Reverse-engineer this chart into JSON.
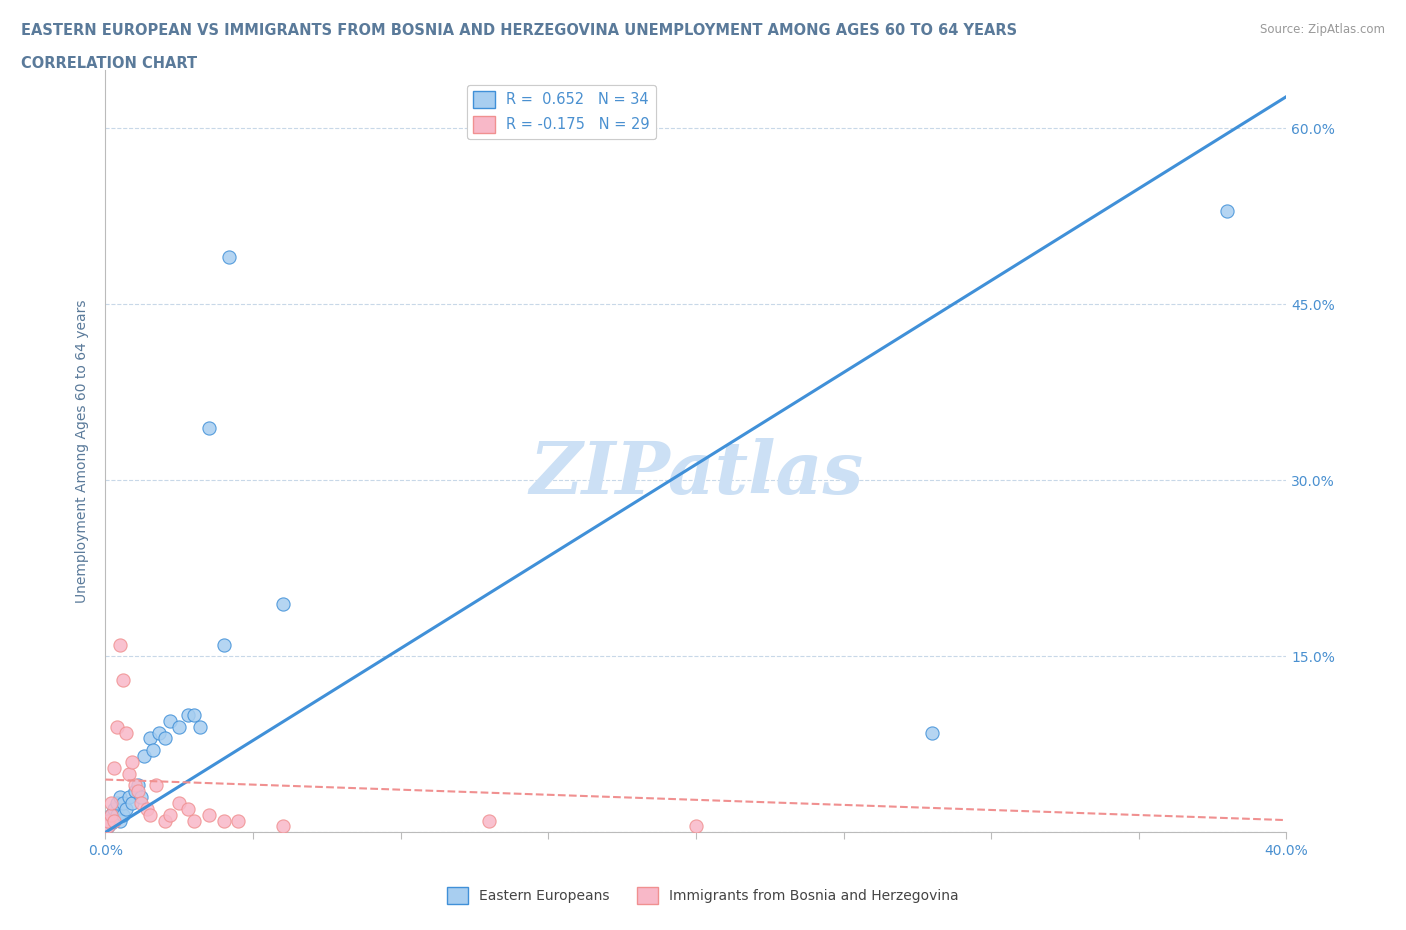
{
  "title_line1": "EASTERN EUROPEAN VS IMMIGRANTS FROM BOSNIA AND HERZEGOVINA UNEMPLOYMENT AMONG AGES 60 TO 64 YEARS",
  "title_line2": "CORRELATION CHART",
  "source_text": "Source: ZipAtlas.com",
  "ylabel": "Unemployment Among Ages 60 to 64 years",
  "xlim": [
    0.0,
    0.4
  ],
  "ylim": [
    0.0,
    0.65
  ],
  "blue_r": 0.652,
  "blue_n": 34,
  "pink_r": -0.175,
  "pink_n": 29,
  "blue_color": "#a8cef0",
  "pink_color": "#f8b8c8",
  "blue_line_color": "#4090d8",
  "pink_line_color": "#f09090",
  "grid_color": "#c8d8e8",
  "title_color": "#5a7a9a",
  "axis_color": "#4a90d0",
  "watermark_color": "#cce0f5",
  "blue_x": [
    0.001,
    0.001,
    0.002,
    0.002,
    0.003,
    0.003,
    0.004,
    0.004,
    0.005,
    0.005,
    0.006,
    0.006,
    0.007,
    0.008,
    0.009,
    0.01,
    0.011,
    0.012,
    0.013,
    0.015,
    0.016,
    0.018,
    0.02,
    0.022,
    0.025,
    0.028,
    0.03,
    0.032,
    0.035,
    0.04,
    0.042,
    0.06,
    0.28,
    0.38
  ],
  "blue_y": [
    0.005,
    0.01,
    0.008,
    0.015,
    0.01,
    0.02,
    0.015,
    0.025,
    0.01,
    0.03,
    0.015,
    0.025,
    0.02,
    0.03,
    0.025,
    0.035,
    0.04,
    0.03,
    0.065,
    0.08,
    0.07,
    0.085,
    0.08,
    0.095,
    0.09,
    0.1,
    0.1,
    0.09,
    0.345,
    0.16,
    0.49,
    0.195,
    0.085,
    0.53
  ],
  "pink_x": [
    0.001,
    0.001,
    0.002,
    0.002,
    0.003,
    0.003,
    0.004,
    0.005,
    0.006,
    0.007,
    0.008,
    0.009,
    0.01,
    0.011,
    0.012,
    0.014,
    0.015,
    0.017,
    0.02,
    0.022,
    0.025,
    0.028,
    0.03,
    0.035,
    0.04,
    0.045,
    0.06,
    0.13,
    0.2
  ],
  "pink_y": [
    0.005,
    0.01,
    0.015,
    0.025,
    0.01,
    0.055,
    0.09,
    0.16,
    0.13,
    0.085,
    0.05,
    0.06,
    0.04,
    0.035,
    0.025,
    0.02,
    0.015,
    0.04,
    0.01,
    0.015,
    0.025,
    0.02,
    0.01,
    0.015,
    0.01,
    0.01,
    0.005,
    0.01,
    0.005
  ],
  "blue_line_x": [
    0.0,
    0.405
  ],
  "blue_line_y": [
    0.0,
    0.635
  ],
  "pink_line_x": [
    0.0,
    0.405
  ],
  "pink_line_y": [
    0.045,
    0.01
  ]
}
